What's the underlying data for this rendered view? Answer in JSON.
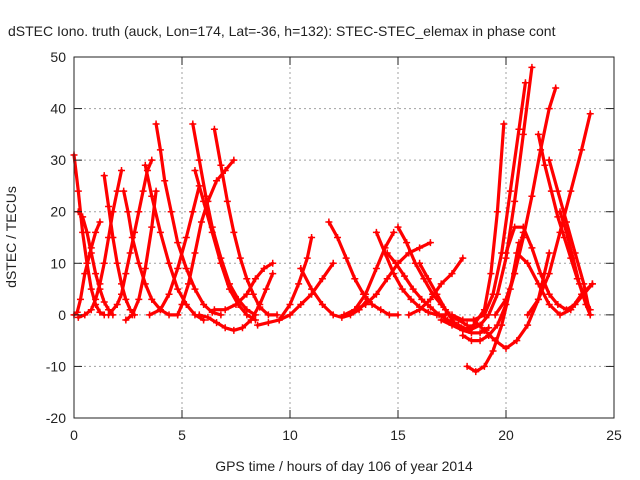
{
  "chart_data": {
    "type": "line",
    "title": "dSTEC Iono. truth (auck, Lon=174, Lat=-36, h=132): STEC-STEC_elemax in phase cont",
    "xlabel": "GPS time / hours of day 106 of year 2014",
    "ylabel": "dSTEC  / TECUs",
    "xlim": [
      0,
      25
    ],
    "ylim": [
      -20,
      50
    ],
    "xticks": [
      "0",
      "5",
      "10",
      "15",
      "20",
      "25"
    ],
    "yticks": [
      "-20",
      "-10",
      "0",
      "10",
      "20",
      "30",
      "40",
      "50"
    ],
    "grid": true,
    "marker": "plus",
    "color": "#ff0000",
    "series": [
      {
        "x": [
          0.0,
          0.2,
          0.4,
          0.6,
          0.8,
          1.0,
          1.2,
          1.4
        ],
        "y": [
          31,
          24,
          16,
          10,
          5,
          2,
          0.5,
          0
        ]
      },
      {
        "x": [
          0.0,
          0.15,
          0.3,
          0.5,
          0.8,
          1.0,
          1.2
        ],
        "y": [
          0,
          0.5,
          3,
          8,
          13,
          16,
          18
        ]
      },
      {
        "x": [
          0.2,
          0.4,
          0.6,
          0.8,
          1.0,
          1.2,
          1.4,
          1.6,
          1.8
        ],
        "y": [
          20,
          19,
          16,
          12,
          8,
          5,
          2.5,
          1,
          0
        ]
      },
      {
        "x": [
          0.2,
          0.5,
          0.8,
          1.0,
          1.2,
          1.4,
          1.6,
          1.8,
          2.0,
          2.2
        ],
        "y": [
          -0.5,
          0,
          1,
          3,
          6,
          10,
          15,
          20,
          24,
          28
        ]
      },
      {
        "x": [
          1.4,
          1.6,
          1.8,
          2.0,
          2.2,
          2.4,
          2.6,
          2.8
        ],
        "y": [
          27,
          21,
          15,
          10,
          6,
          3,
          1,
          0
        ]
      },
      {
        "x": [
          1.6,
          2.0,
          2.2,
          2.4,
          2.6,
          2.8,
          3.0,
          3.2,
          3.4,
          3.6
        ],
        "y": [
          0,
          2,
          4,
          8,
          12,
          16,
          20,
          24,
          28,
          30
        ]
      },
      {
        "x": [
          2.3,
          2.5,
          2.7,
          3.0,
          3.3,
          3.6,
          4.0,
          4.4,
          4.8
        ],
        "y": [
          24,
          20,
          15,
          10,
          6,
          3,
          1,
          0,
          0
        ]
      },
      {
        "x": [
          2.4,
          2.7,
          3.0,
          3.3,
          3.6,
          3.8
        ],
        "y": [
          -1,
          0,
          3,
          9,
          17,
          24
        ]
      },
      {
        "x": [
          3.3,
          3.6,
          4.0,
          4.4,
          4.8,
          5.2,
          5.6,
          6.0
        ],
        "y": [
          29,
          23,
          16,
          10,
          5,
          2,
          0,
          -1
        ]
      },
      {
        "x": [
          3.5,
          4.0,
          4.4,
          4.8,
          5.2,
          5.5,
          5.8
        ],
        "y": [
          0,
          1,
          4,
          9,
          15,
          20,
          25
        ]
      },
      {
        "x": [
          3.8,
          4.0,
          4.2,
          4.5,
          4.8,
          5.2,
          5.6,
          6.0,
          6.4,
          6.8
        ],
        "y": [
          37,
          32,
          26,
          20,
          14,
          9,
          5,
          2,
          0.5,
          0
        ]
      },
      {
        "x": [
          4.8,
          5.0,
          5.3,
          5.6,
          5.9,
          6.2,
          6.6,
          7.0,
          7.4
        ],
        "y": [
          0,
          2,
          6,
          12,
          18,
          22,
          26,
          28,
          30
        ]
      },
      {
        "x": [
          5.5,
          5.8,
          6.1,
          6.4,
          6.8,
          7.2,
          7.6,
          8.0,
          8.4
        ],
        "y": [
          37,
          30,
          23,
          17,
          11,
          6,
          3,
          1,
          0
        ]
      },
      {
        "x": [
          5.6,
          6.0,
          6.4,
          6.8,
          7.2,
          7.6,
          8.0,
          8.4
        ],
        "y": [
          28,
          22,
          16,
          10,
          5,
          2,
          0,
          -1
        ]
      },
      {
        "x": [
          6.5,
          6.8,
          7.1,
          7.4,
          7.7,
          8.0,
          8.3,
          8.6,
          9.0,
          9.4
        ],
        "y": [
          36,
          29,
          22,
          16,
          11,
          7,
          4,
          1.5,
          0,
          0
        ]
      },
      {
        "x": [
          5.8,
          6.2,
          6.6,
          7.0,
          7.4,
          7.8,
          8.2,
          8.6,
          8.9,
          9.2
        ],
        "y": [
          0,
          -0.5,
          -1.5,
          -2.5,
          -3,
          -2.5,
          -1,
          2,
          5,
          8
        ]
      },
      {
        "x": [
          6.5,
          7.0,
          7.5,
          8.0,
          8.4,
          8.8,
          9.2
        ],
        "y": [
          1,
          1,
          2,
          4,
          7,
          9,
          10
        ]
      },
      {
        "x": [
          8.5,
          9.0,
          9.5,
          10.0,
          10.4,
          10.8,
          11.0
        ],
        "y": [
          -2,
          -1.5,
          -1,
          2,
          6,
          11,
          15
        ]
      },
      {
        "x": [
          9.5,
          10.0,
          10.5,
          11.0,
          11.5,
          12.0
        ],
        "y": [
          -1,
          0,
          2,
          4,
          7,
          10
        ]
      },
      {
        "x": [
          10.5,
          11.0,
          11.5,
          12.0,
          12.4,
          12.8,
          13.2,
          13.6
        ],
        "y": [
          9,
          5,
          2,
          0,
          -0.5,
          0,
          1,
          3
        ]
      },
      {
        "x": [
          11.8,
          12.2,
          12.6,
          13.0,
          13.4,
          13.8,
          14.2,
          14.6,
          15.0
        ],
        "y": [
          18,
          15,
          11,
          7,
          4,
          2,
          1,
          0,
          0
        ]
      },
      {
        "x": [
          12.5,
          13.0,
          13.5,
          14.0,
          14.4,
          14.8
        ],
        "y": [
          0,
          1,
          4,
          9,
          13,
          16
        ]
      },
      {
        "x": [
          13.0,
          13.5,
          14.0,
          14.5,
          15.0,
          15.5,
          16.0,
          16.5
        ],
        "y": [
          1,
          2,
          4,
          7,
          10,
          12,
          13,
          14
        ]
      },
      {
        "x": [
          14.0,
          14.4,
          14.8,
          15.2,
          15.6,
          16.0,
          16.4,
          16.8,
          17.2
        ],
        "y": [
          16,
          12,
          8,
          5,
          3,
          1.5,
          0.5,
          0,
          0
        ]
      },
      {
        "x": [
          14.5,
          14.9,
          15.3,
          15.7,
          16.1,
          16.5,
          16.9,
          17.3,
          17.7
        ],
        "y": [
          12,
          10,
          7.5,
          5,
          3,
          1.5,
          0,
          -1,
          -2
        ]
      },
      {
        "x": [
          15.0,
          15.4,
          15.8,
          16.2,
          16.6,
          17.0,
          17.4,
          17.8,
          18.2
        ],
        "y": [
          17,
          14,
          10,
          7,
          4,
          2,
          0,
          -1,
          -2
        ]
      },
      {
        "x": [
          16.0,
          16.4,
          16.8,
          17.2,
          17.6,
          18.0,
          18.4,
          18.8,
          19.2
        ],
        "y": [
          10,
          7,
          4,
          1,
          -1.5,
          -3,
          -3.5,
          -3.5,
          -2.5
        ]
      },
      {
        "x": [
          15.5,
          16.0,
          16.5,
          17.0,
          17.5,
          18.0
        ],
        "y": [
          0,
          1,
          3,
          6,
          8,
          11
        ]
      },
      {
        "x": [
          17.0,
          17.5,
          18.0,
          18.5,
          19.0,
          19.3,
          19.6,
          19.9
        ],
        "y": [
          -1,
          -2,
          -3,
          -2,
          1,
          8,
          20,
          37
        ]
      },
      {
        "x": [
          17.5,
          18.0,
          18.5,
          19.0,
          19.4,
          19.8,
          20.2,
          20.6,
          20.9
        ],
        "y": [
          0,
          -1,
          -1,
          0,
          4,
          12,
          24,
          36,
          45
        ]
      },
      {
        "x": [
          17.8,
          18.3,
          18.8,
          19.2,
          19.6,
          20.0,
          20.4,
          20.8,
          21.2
        ],
        "y": [
          -2,
          -3,
          -2,
          0,
          4,
          11,
          22,
          35,
          48
        ]
      },
      {
        "x": [
          18.0,
          18.4,
          18.8,
          19.2,
          19.6,
          20.0,
          20.4,
          20.8
        ],
        "y": [
          -4,
          -5,
          -5,
          -4,
          -2,
          2,
          8,
          16
        ]
      },
      {
        "x": [
          18.2,
          18.6,
          19.0,
          19.4,
          19.8,
          20.2,
          20.6
        ],
        "y": [
          -10,
          -11,
          -10,
          -7,
          -2,
          5,
          14
        ]
      },
      {
        "x": [
          18.5,
          19.0,
          19.5,
          20.0,
          20.5,
          21.0,
          21.5,
          22.0
        ],
        "y": [
          -1,
          -3,
          -5,
          -6.5,
          -5,
          -2,
          3,
          12
        ]
      },
      {
        "x": [
          19.5,
          20.0,
          20.4,
          20.8,
          21.2,
          21.6,
          22.0,
          22.3
        ],
        "y": [
          0,
          3,
          8,
          15,
          23,
          32,
          40,
          44
        ]
      },
      {
        "x": [
          20.0,
          20.4,
          20.8,
          21.2,
          21.6,
          22.0,
          22.4,
          22.8,
          23.2,
          23.6,
          24.0
        ],
        "y": [
          12,
          17,
          17,
          13,
          8,
          4,
          2,
          1,
          2,
          4,
          6
        ]
      },
      {
        "x": [
          20.5,
          21.0,
          21.5,
          22.0,
          22.5,
          23.0,
          23.5,
          24.0
        ],
        "y": [
          12,
          10,
          6,
          2,
          0,
          1,
          4,
          6
        ]
      },
      {
        "x": [
          21.5,
          21.8,
          22.1,
          22.4,
          22.7,
          23.0,
          23.3,
          23.6,
          23.9
        ],
        "y": [
          35,
          29,
          24,
          19,
          15,
          11,
          7,
          4,
          1
        ]
      },
      {
        "x": [
          22.0,
          22.4,
          22.8,
          23.2,
          23.6,
          23.9
        ],
        "y": [
          30,
          24,
          18,
          12,
          6,
          0
        ]
      },
      {
        "x": [
          21.0,
          21.5,
          22.0,
          22.5,
          23.0,
          23.5,
          23.9
        ],
        "y": [
          0,
          3,
          8,
          16,
          24,
          32,
          39
        ]
      },
      {
        "x": [
          22.5,
          22.8,
          23.1,
          23.4,
          23.7,
          23.9
        ],
        "y": [
          20,
          16,
          11,
          6,
          2,
          0
        ]
      }
    ]
  }
}
